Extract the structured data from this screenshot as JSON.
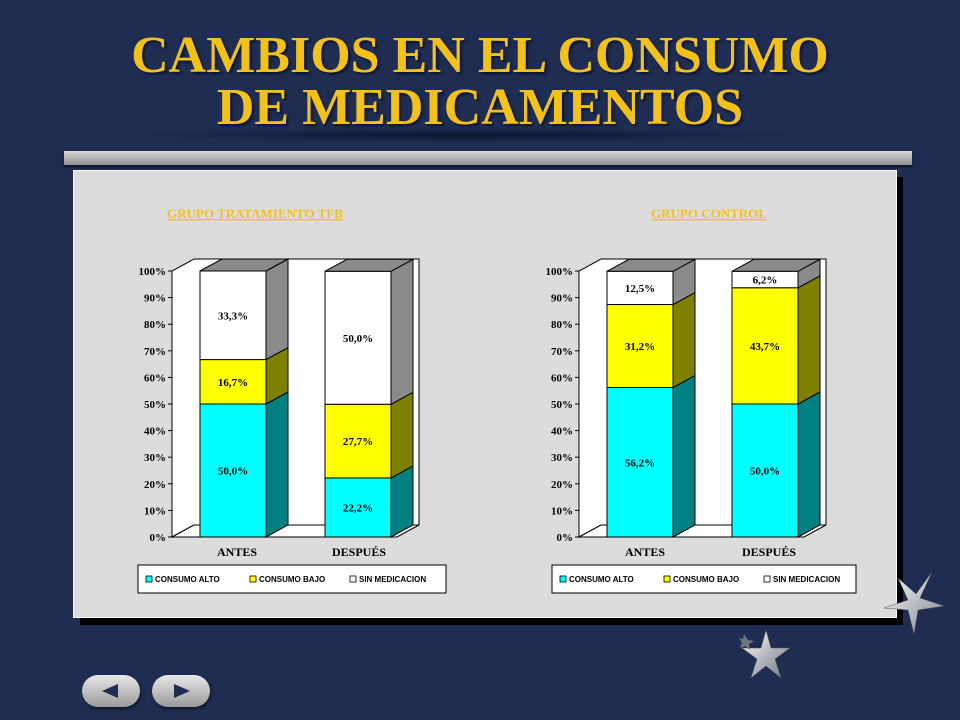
{
  "slide": {
    "title_line1": "CAMBIOS EN EL CONSUMO",
    "title_line2": "DE MEDICAMENTOS"
  },
  "colors": {
    "consumo_alto": "#00ffff",
    "consumo_bajo": "#ffff00",
    "sin_medicacion": "#ffffff",
    "title": "#f2c21a"
  },
  "chart_data": [
    {
      "type": "bar",
      "stacked": true,
      "title": "GRUPO TRATAMIENTO TFB",
      "categories": [
        "ANTES",
        "DESPUÉS"
      ],
      "yticks": [
        "0%",
        "10%",
        "20%",
        "30%",
        "40%",
        "50%",
        "60%",
        "70%",
        "80%",
        "90%",
        "100%"
      ],
      "ylim": [
        0,
        100
      ],
      "series": [
        {
          "name": "CONSUMO ALTO",
          "values": [
            50.0,
            22.2
          ],
          "labels": [
            "50,0%",
            "22,2%"
          ]
        },
        {
          "name": "CONSUMO BAJO",
          "values": [
            16.7,
            27.7
          ],
          "labels": [
            "16,7%",
            "27,7%"
          ]
        },
        {
          "name": "SIN MEDICACION",
          "values": [
            33.3,
            50.0
          ],
          "labels": [
            "33,3%",
            "50,0%"
          ]
        }
      ],
      "legend": "bottom"
    },
    {
      "type": "bar",
      "stacked": true,
      "title": "GRUPO CONTROL",
      "categories": [
        "ANTES",
        "DESPUÉS"
      ],
      "yticks": [
        "0%",
        "10%",
        "20%",
        "30%",
        "40%",
        "50%",
        "60%",
        "70%",
        "80%",
        "90%",
        "100%"
      ],
      "ylim": [
        0,
        100
      ],
      "series": [
        {
          "name": "CONSUMO ALTO",
          "values": [
            56.2,
            50.0
          ],
          "labels": [
            "56,2%",
            "50,0%"
          ]
        },
        {
          "name": "CONSUMO BAJO",
          "values": [
            31.2,
            43.7
          ],
          "labels": [
            "31,2%",
            "43,7%"
          ]
        },
        {
          "name": "SIN MEDICACION",
          "values": [
            12.5,
            6.2
          ],
          "labels": [
            "12,5%",
            "6,2%"
          ]
        }
      ],
      "legend": "bottom"
    }
  ],
  "navigation": {
    "prev_icon": "arrow-left-icon",
    "next_icon": "arrow-right-icon"
  }
}
